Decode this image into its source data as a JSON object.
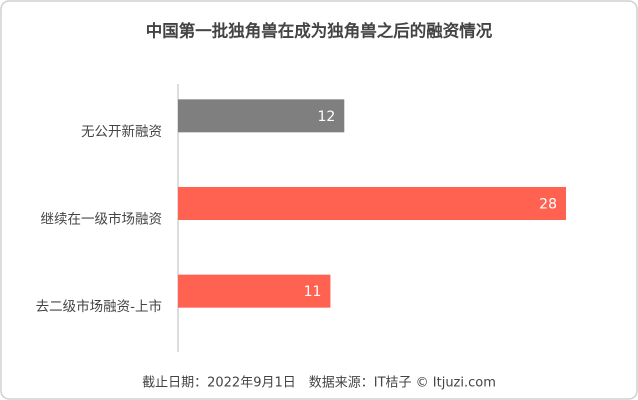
{
  "chart_data": {
    "type": "bar",
    "orientation": "horizontal",
    "title": "中国第一批独角兽在成为独角兽之后的融资情况",
    "categories": [
      "无公开新融资",
      "继续在一级市场融资",
      "去二级市场融资-上市"
    ],
    "values": [
      12,
      28,
      11
    ],
    "colors": [
      "#7f7f7f",
      "#ff6250",
      "#ff6250"
    ],
    "footer": "截止日期：2022年9月1日　数据来源：IT桔子 © Itjuzi.com"
  }
}
